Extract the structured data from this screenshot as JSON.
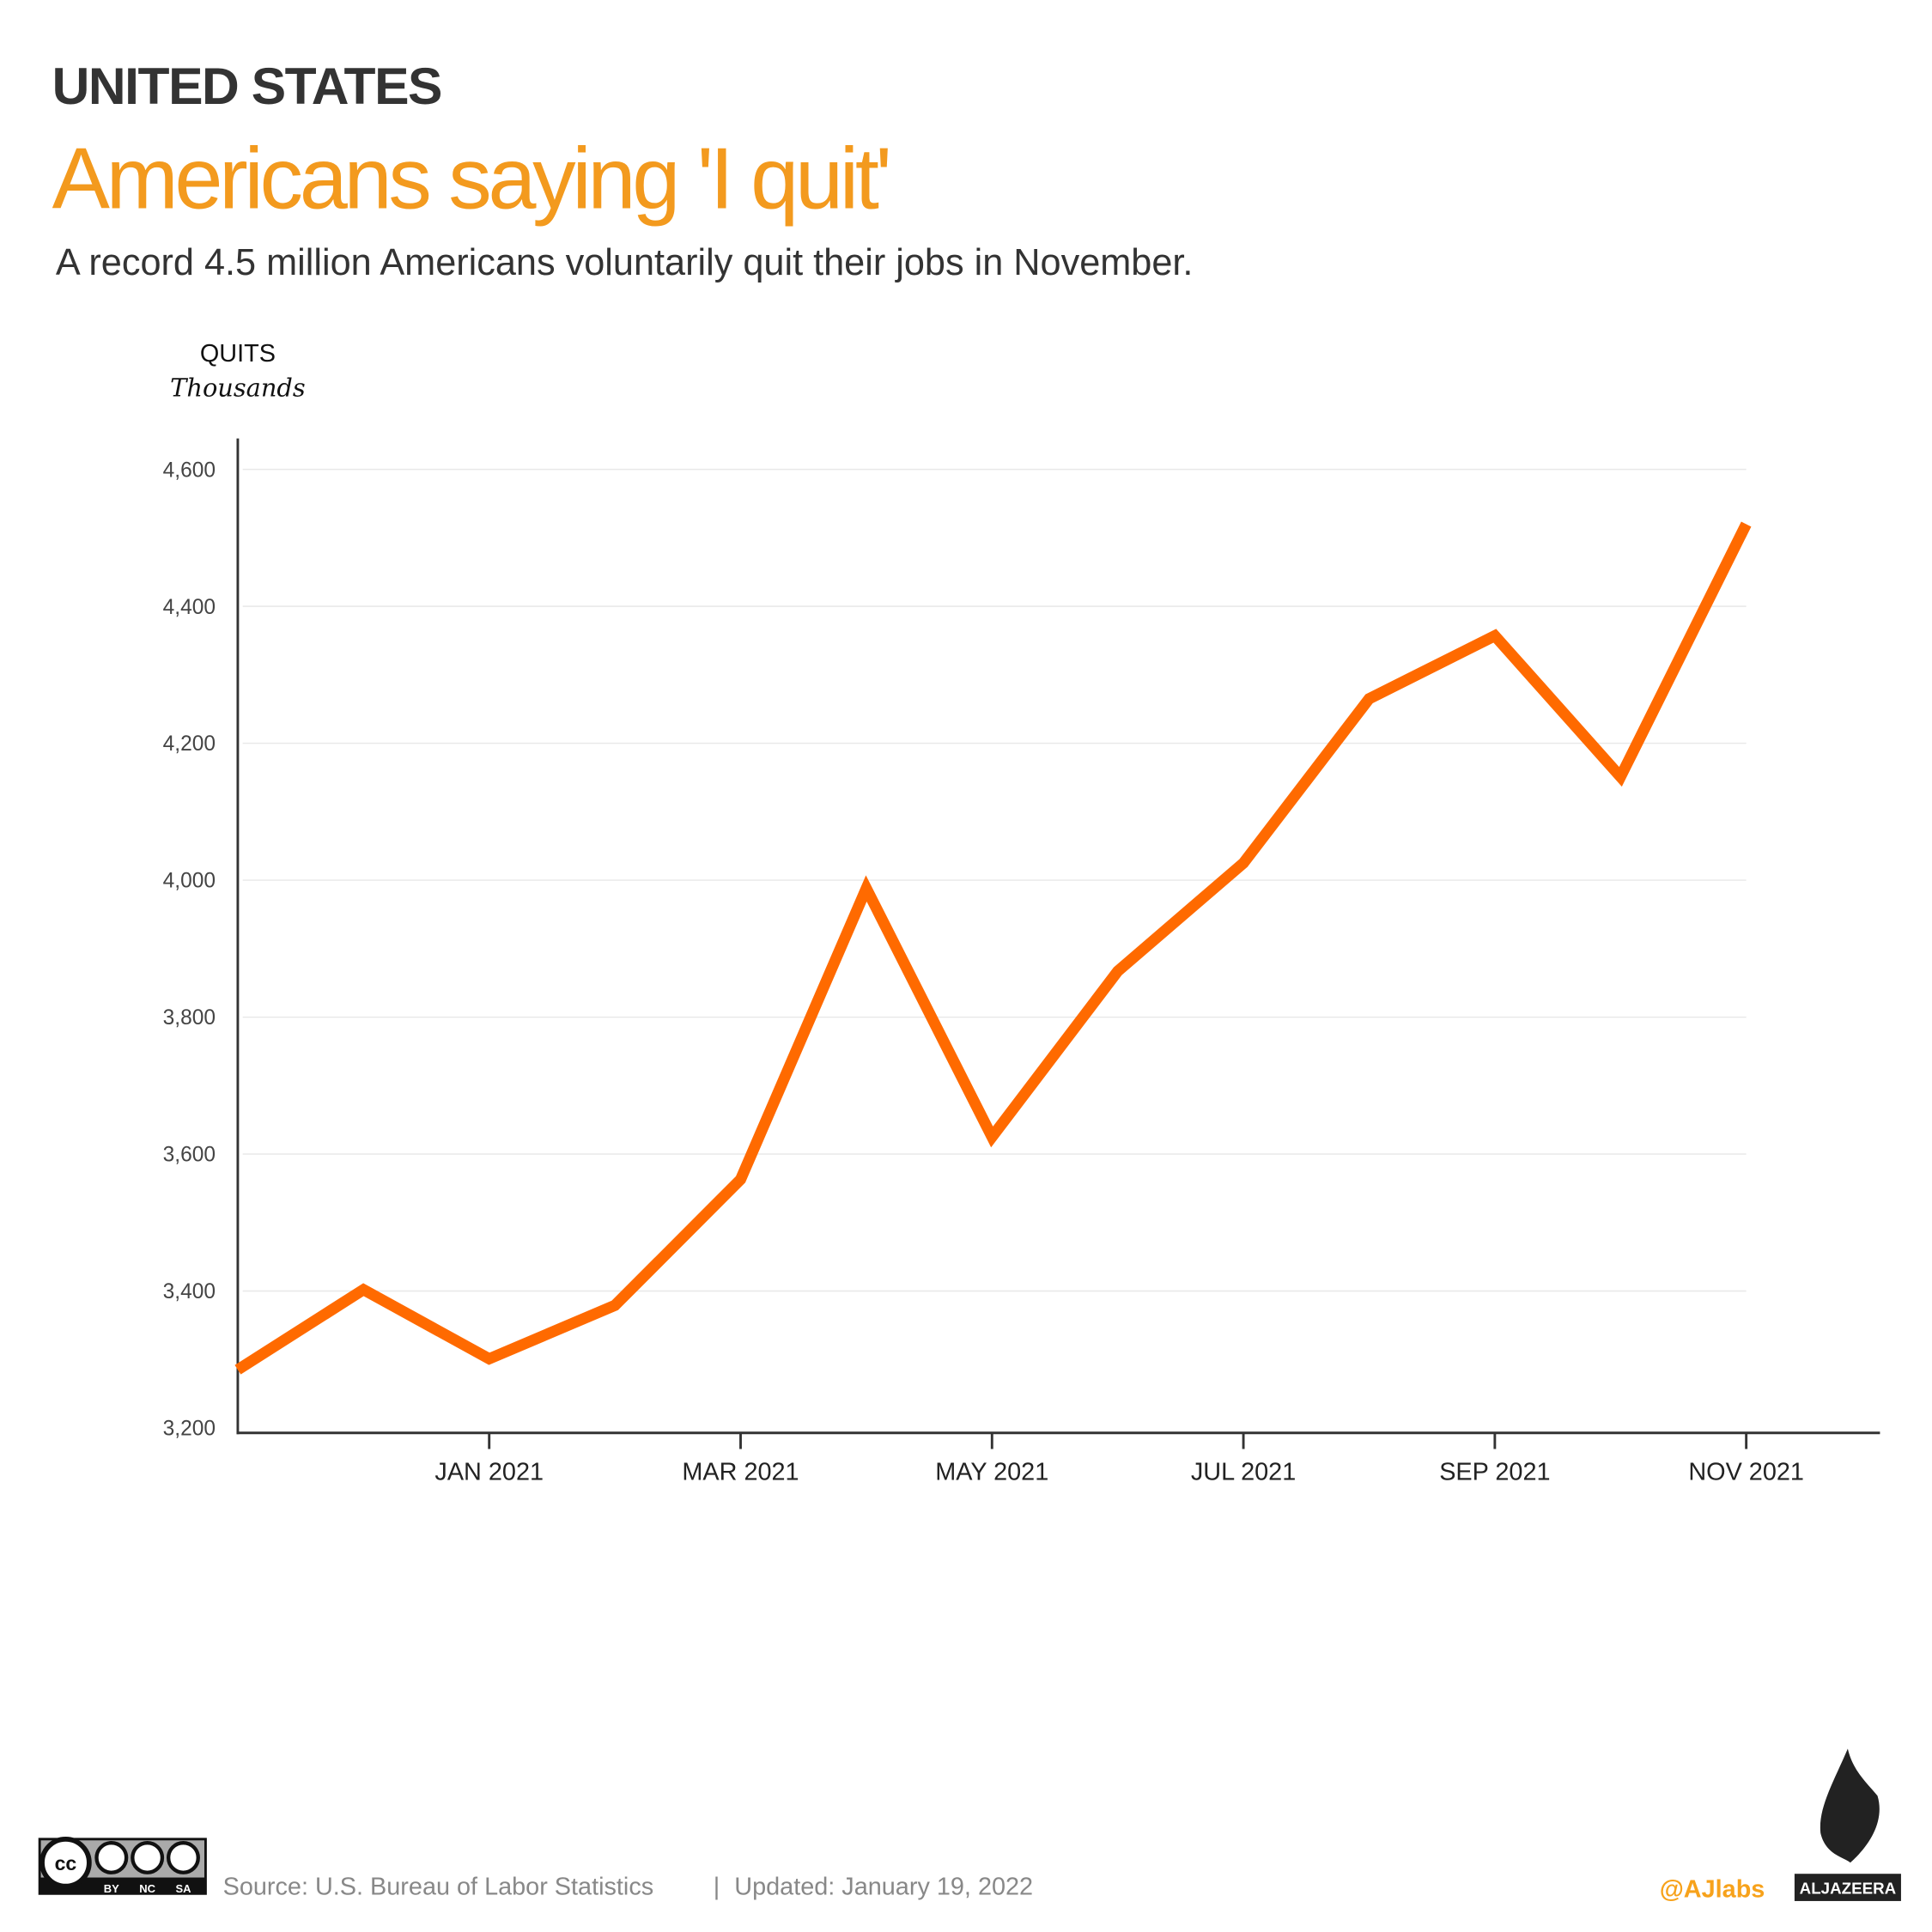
{
  "header": {
    "kicker": "UNITED STATES",
    "title": "Americans saying 'I quit'",
    "subtitle": "A record 4.5 million Americans voluntarily quit their jobs in November."
  },
  "chart_data": {
    "type": "line",
    "ylabel": "QUITS",
    "yunit": "Thousands",
    "ylim": [
      3200,
      4600
    ],
    "yticks": [
      3200,
      3400,
      3600,
      3800,
      4000,
      4200,
      4400,
      4600
    ],
    "ytick_labels": [
      "3,200",
      "3,400",
      "3,600",
      "3,800",
      "4,000",
      "4,200",
      "4,400",
      "4,600"
    ],
    "x": [
      "2020-11",
      "2020-12",
      "2021-01",
      "2021-02",
      "2021-03",
      "2021-04",
      "2021-05",
      "2021-06",
      "2021-07",
      "2021-08",
      "2021-09",
      "2021-10",
      "2021-11"
    ],
    "xtick_positions": [
      "2021-01",
      "2021-03",
      "2021-05",
      "2021-07",
      "2021-09",
      "2021-11"
    ],
    "xtick_labels": [
      "JAN 2021",
      "MAR 2021",
      "MAY 2021",
      "JUL 2021",
      "SEP 2021",
      "NOV 2021"
    ],
    "series": [
      {
        "values": [
          3285,
          3402,
          3301,
          3379,
          3563,
          3988,
          3625,
          3867,
          4025,
          4265,
          4357,
          4151,
          4520
        ],
        "color": "#FF6A00"
      }
    ],
    "grid": true,
    "legend": "none"
  },
  "footer": {
    "license_labels": [
      "BY",
      "NC",
      "SA"
    ],
    "source": "Source: U.S. Bureau of Labor Statistics",
    "separator": "|",
    "updated": "Updated:  January 19, 2022",
    "handle": "@AJlabs",
    "brand": "ALJAZEERA"
  },
  "colors": {
    "title": "#F39A1E",
    "line": "#FF6A00",
    "text": "#333333",
    "handle": "#F7A21B"
  }
}
